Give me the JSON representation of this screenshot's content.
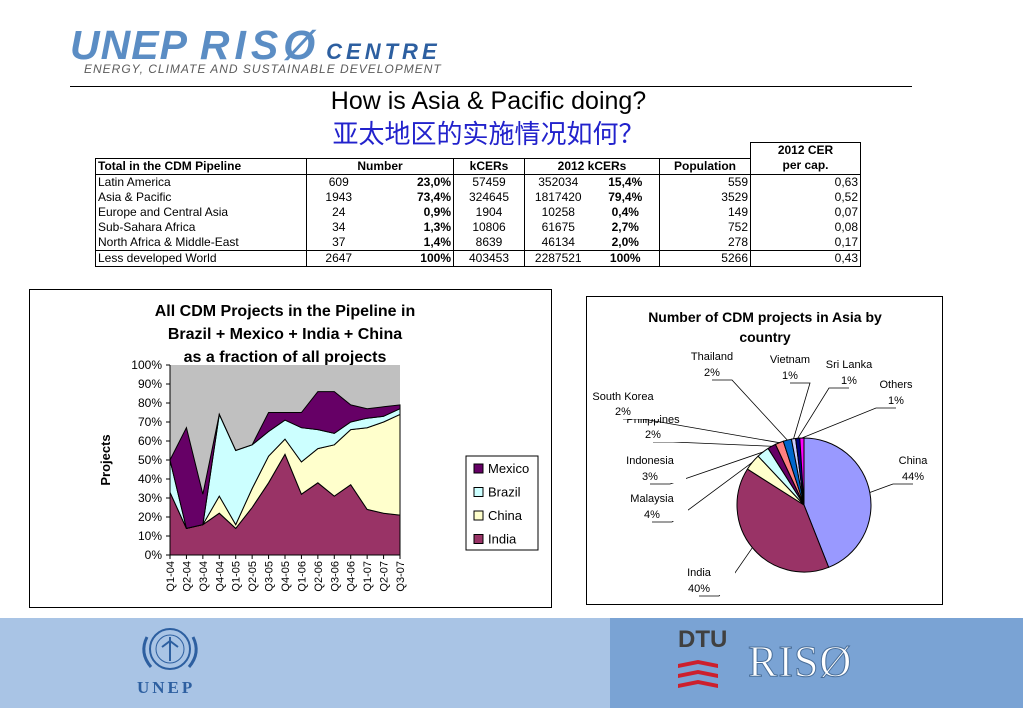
{
  "logo": {
    "part1": "UNEP",
    "part2": "RISØ",
    "part3": "CENTRE",
    "tagline": "ENERGY, CLIMATE AND SUSTAINABLE DEVELOPMENT"
  },
  "title": "How is Asia & Pacific doing?",
  "subtitle": "亚太地区的实施情况如何？",
  "table": {
    "cer_header_line1": "2012 CER",
    "cer_header_line2": "per cap.",
    "headers": [
      "Total in the CDM Pipeline",
      "Number",
      "kCERs",
      "2012 kCERs",
      "Population"
    ],
    "rows": [
      [
        "Latin America",
        "609",
        "23,0%",
        "57459",
        "352034",
        "15,4%",
        "559",
        "0,63"
      ],
      [
        "Asia & Pacific",
        "1943",
        "73,4%",
        "324645",
        "1817420",
        "79,4%",
        "3529",
        "0,52"
      ],
      [
        "Europe and Central Asia",
        "24",
        "0,9%",
        "1904",
        "10258",
        "0,4%",
        "149",
        "0,07"
      ],
      [
        "Sub-Sahara Africa",
        "34",
        "1,3%",
        "10806",
        "61675",
        "2,7%",
        "752",
        "0,08"
      ],
      [
        "North Africa & Middle-East",
        "37",
        "1,4%",
        "8639",
        "46134",
        "2,0%",
        "278",
        "0,17"
      ]
    ],
    "total": [
      "Less developed World",
      "2647",
      "100%",
      "403453",
      "2287521",
      "100%",
      "5266",
      "0,43"
    ]
  },
  "chart_data": [
    {
      "type": "area",
      "stacked": true,
      "title": "All CDM Projects in the Pipeline in Brazil + Mexico + India + China as a fraction of all projects",
      "title_lines": [
        "All CDM Projects in the Pipeline in",
        "Brazil + Mexico + India + China",
        "as a fraction of all projects"
      ],
      "ylabel": "Projects",
      "ylim": [
        0,
        100
      ],
      "yticks": [
        "0%",
        "10%",
        "20%",
        "30%",
        "40%",
        "50%",
        "60%",
        "70%",
        "80%",
        "90%",
        "100%"
      ],
      "categories": [
        "Q1-04",
        "Q2-04",
        "Q3-04",
        "Q4-04",
        "Q1-05",
        "Q2-05",
        "Q3-05",
        "Q4-05",
        "Q1-06",
        "Q2-06",
        "Q3-06",
        "Q4-06",
        "Q1-07",
        "Q2-07",
        "Q3-07"
      ],
      "series": [
        {
          "name": "India",
          "color": "#993366",
          "values": [
            33,
            14,
            16,
            22,
            14,
            25,
            38,
            53,
            32,
            38,
            31,
            37,
            24,
            22,
            21
          ]
        },
        {
          "name": "China",
          "color": "#ffffcc",
          "values": [
            0,
            0,
            0,
            9,
            2,
            10,
            14,
            8,
            17,
            18,
            27,
            29,
            43,
            48,
            53
          ]
        },
        {
          "name": "Brazil",
          "color": "#ccffff",
          "values": [
            17,
            0,
            0,
            43,
            39,
            23,
            13,
            10,
            18,
            10,
            6,
            4,
            5,
            3,
            3
          ]
        },
        {
          "name": "Mexico",
          "color": "#660066",
          "values": [
            0,
            53,
            16,
            0,
            0,
            0,
            10,
            4,
            8,
            20,
            22,
            9,
            5,
            5,
            2
          ]
        }
      ],
      "legend_order": [
        "Mexico",
        "Brazil",
        "China",
        "India"
      ],
      "plot_bg": "#c0c0c0",
      "grid": false,
      "legend": "right"
    },
    {
      "type": "pie",
      "title": "Number of CDM projects in Asia by country",
      "title_lines": [
        "Number of CDM projects in Asia by",
        "country"
      ],
      "slices": [
        {
          "name": "China",
          "pct": "44%",
          "value": 44,
          "color": "#9999ff"
        },
        {
          "name": "India",
          "pct": "40%",
          "value": 40,
          "color": "#993366"
        },
        {
          "name": "Malaysia",
          "pct": "4%",
          "value": 4,
          "color": "#ffffcc"
        },
        {
          "name": "Indonesia",
          "pct": "3%",
          "value": 3,
          "color": "#ccffff"
        },
        {
          "name": "Philippines",
          "pct": "2%",
          "value": 2,
          "color": "#660066"
        },
        {
          "name": "South Korea",
          "pct": "2%",
          "value": 2,
          "color": "#ff8080"
        },
        {
          "name": "Thailand",
          "pct": "2%",
          "value": 2,
          "color": "#0066cc"
        },
        {
          "name": "Vietnam",
          "pct": "1%",
          "value": 1,
          "color": "#ccccff"
        },
        {
          "name": "Sri Lanka",
          "pct": "1%",
          "value": 1,
          "color": "#000080"
        },
        {
          "name": "Others",
          "pct": "1%",
          "value": 1,
          "color": "#ff00ff"
        }
      ]
    }
  ],
  "footer": {
    "unep": "UNEP",
    "dtu": "DTU",
    "riso": "RISØ"
  }
}
